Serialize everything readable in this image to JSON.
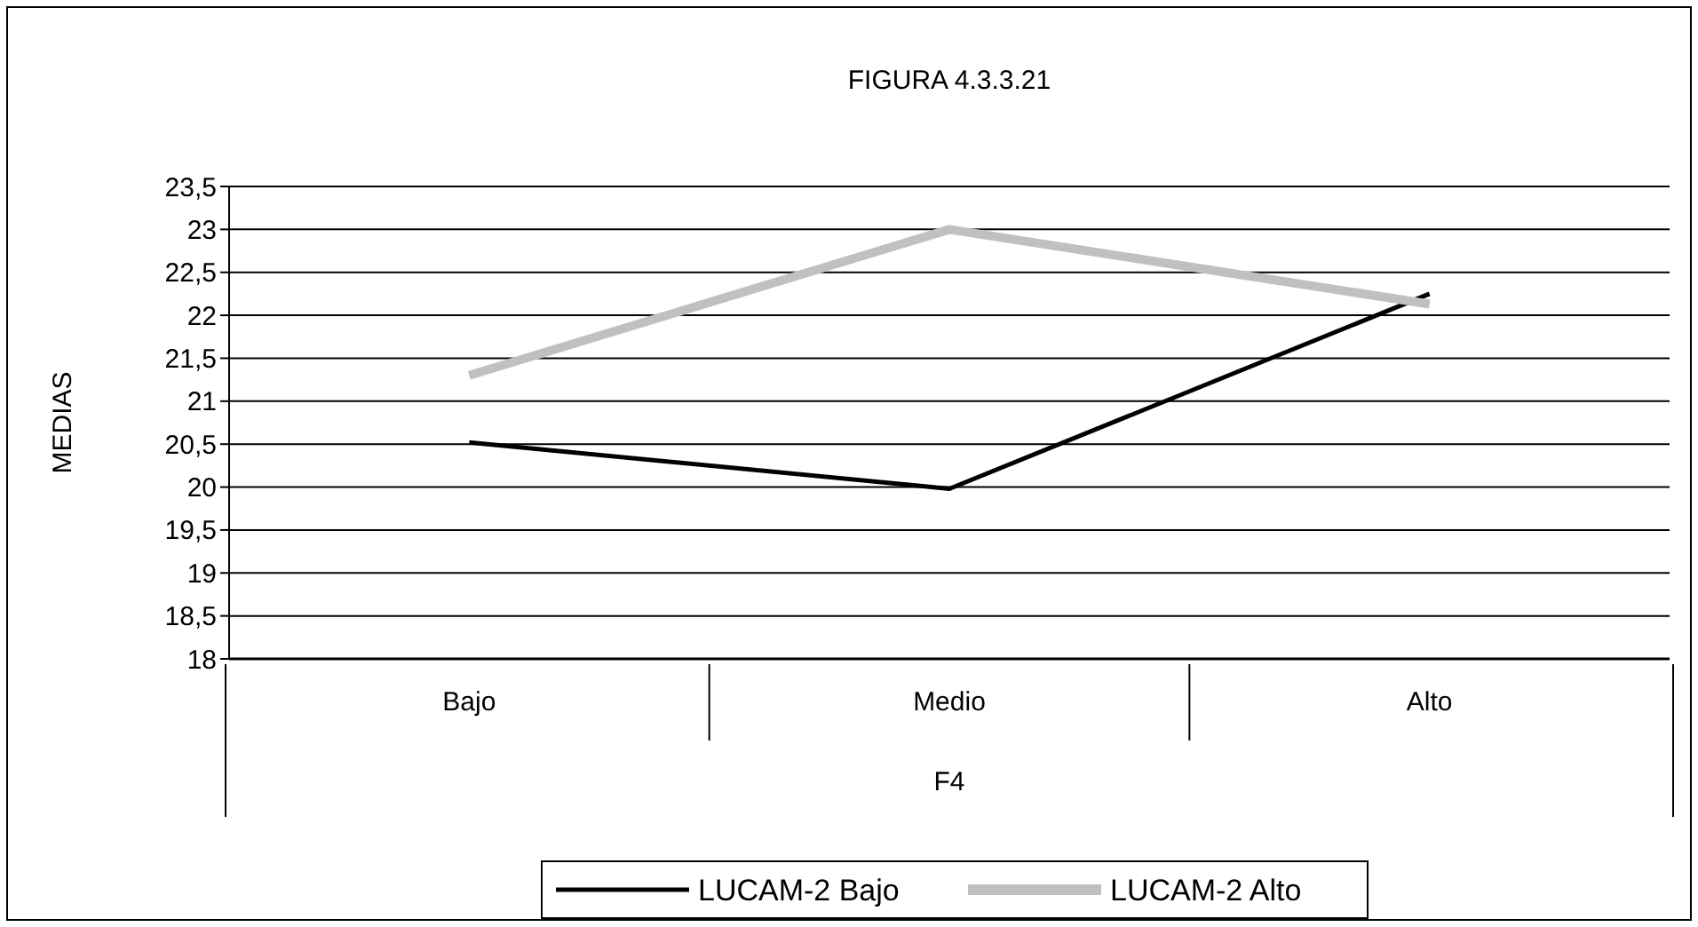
{
  "chart_data": {
    "type": "line",
    "title": "FIGURA 4.3.3.21",
    "xlabel": "F4",
    "ylabel": "MEDIAS",
    "categories": [
      "Bajo",
      "Medio",
      "Alto"
    ],
    "series": [
      {
        "name": "LUCAM-2 Bajo",
        "color": "#000000",
        "values": [
          20.52,
          19.98,
          22.25
        ]
      },
      {
        "name": "LUCAM-2 Alto",
        "color": "#c0c0c0",
        "values": [
          21.3,
          23.0,
          22.13
        ]
      }
    ],
    "ylim": [
      18,
      23.5
    ],
    "yticks": [
      {
        "value": 18,
        "label": "18"
      },
      {
        "value": 18.5,
        "label": "18,5"
      },
      {
        "value": 19,
        "label": "19"
      },
      {
        "value": 19.5,
        "label": "19,5"
      },
      {
        "value": 20,
        "label": "20"
      },
      {
        "value": 20.5,
        "label": "20,5"
      },
      {
        "value": 21,
        "label": "21"
      },
      {
        "value": 21.5,
        "label": "21,5"
      },
      {
        "value": 22,
        "label": "22"
      },
      {
        "value": 22.5,
        "label": "22,5"
      },
      {
        "value": 23,
        "label": "23"
      },
      {
        "value": 23.5,
        "label": "23,5"
      }
    ],
    "grid": "y",
    "legend": "bottom",
    "marker": "none",
    "line_style": "solid"
  }
}
